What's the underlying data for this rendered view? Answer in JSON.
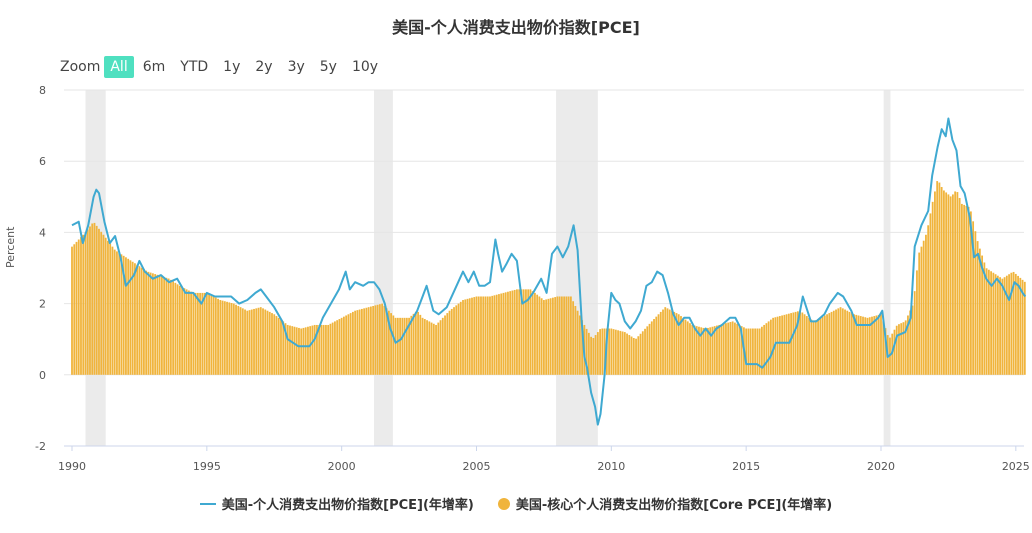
{
  "title": "美国-个人消费支出物价指数[PCE]",
  "zoom": {
    "label": "Zoom",
    "buttons": [
      "All",
      "6m",
      "YTD",
      "1y",
      "2y",
      "3y",
      "5y",
      "10y"
    ],
    "active": "All"
  },
  "colors": {
    "pce": "#3fa9d1",
    "core": "#f0b43c",
    "recession": "#ebebeb",
    "grid": "#e6e6e6",
    "active_button": "#4fe0c0"
  },
  "chart_data": {
    "type": "line+bar",
    "ylabel": "Percent",
    "ylim": [
      -2,
      8
    ],
    "yticks": [
      -2,
      0,
      2,
      4,
      6,
      8
    ],
    "xlim": [
      1990.0,
      2025.6
    ],
    "xticks": [
      1990,
      1995,
      2000,
      2005,
      2010,
      2015,
      2020,
      2025
    ],
    "recessions": [
      [
        1990.5,
        1991.25
      ],
      [
        2001.2,
        2001.9
      ],
      [
        2007.95,
        2009.5
      ],
      [
        2020.1,
        2020.35
      ]
    ],
    "series": [
      {
        "name": "美国-个人消费支出物价指数[PCE](年增率)",
        "kind": "line",
        "points": [
          [
            1990.0,
            4.2
          ],
          [
            1990.25,
            4.3
          ],
          [
            1990.4,
            3.7
          ],
          [
            1990.6,
            4.2
          ],
          [
            1990.8,
            5.0
          ],
          [
            1990.9,
            5.2
          ],
          [
            1991.0,
            5.1
          ],
          [
            1991.2,
            4.3
          ],
          [
            1991.4,
            3.7
          ],
          [
            1991.6,
            3.9
          ],
          [
            1991.8,
            3.3
          ],
          [
            1992.0,
            2.5
          ],
          [
            1992.3,
            2.8
          ],
          [
            1992.5,
            3.2
          ],
          [
            1992.7,
            2.9
          ],
          [
            1993.0,
            2.7
          ],
          [
            1993.3,
            2.8
          ],
          [
            1993.6,
            2.6
          ],
          [
            1993.9,
            2.7
          ],
          [
            1994.2,
            2.3
          ],
          [
            1994.5,
            2.3
          ],
          [
            1994.8,
            2.0
          ],
          [
            1995.0,
            2.3
          ],
          [
            1995.3,
            2.2
          ],
          [
            1995.6,
            2.2
          ],
          [
            1995.9,
            2.2
          ],
          [
            1996.2,
            2.0
          ],
          [
            1996.5,
            2.1
          ],
          [
            1996.8,
            2.3
          ],
          [
            1997.0,
            2.4
          ],
          [
            1997.2,
            2.2
          ],
          [
            1997.5,
            1.9
          ],
          [
            1997.8,
            1.5
          ],
          [
            1998.0,
            1.0
          ],
          [
            1998.2,
            0.9
          ],
          [
            1998.4,
            0.8
          ],
          [
            1998.6,
            0.8
          ],
          [
            1998.8,
            0.8
          ],
          [
            1999.0,
            1.0
          ],
          [
            1999.3,
            1.6
          ],
          [
            1999.6,
            2.0
          ],
          [
            1999.9,
            2.4
          ],
          [
            2000.15,
            2.9
          ],
          [
            2000.3,
            2.4
          ],
          [
            2000.5,
            2.6
          ],
          [
            2000.8,
            2.5
          ],
          [
            2001.0,
            2.6
          ],
          [
            2001.2,
            2.6
          ],
          [
            2001.4,
            2.4
          ],
          [
            2001.6,
            2.0
          ],
          [
            2001.8,
            1.3
          ],
          [
            2002.0,
            0.9
          ],
          [
            2002.2,
            1.0
          ],
          [
            2002.5,
            1.4
          ],
          [
            2002.8,
            1.8
          ],
          [
            2003.0,
            2.2
          ],
          [
            2003.15,
            2.5
          ],
          [
            2003.4,
            1.8
          ],
          [
            2003.6,
            1.7
          ],
          [
            2003.9,
            1.9
          ],
          [
            2004.2,
            2.4
          ],
          [
            2004.5,
            2.9
          ],
          [
            2004.7,
            2.6
          ],
          [
            2004.9,
            2.9
          ],
          [
            2005.1,
            2.5
          ],
          [
            2005.3,
            2.5
          ],
          [
            2005.5,
            2.6
          ],
          [
            2005.7,
            3.8
          ],
          [
            2005.8,
            3.4
          ],
          [
            2005.95,
            2.9
          ],
          [
            2006.1,
            3.1
          ],
          [
            2006.3,
            3.4
          ],
          [
            2006.5,
            3.2
          ],
          [
            2006.7,
            2.0
          ],
          [
            2006.9,
            2.1
          ],
          [
            2007.1,
            2.3
          ],
          [
            2007.4,
            2.7
          ],
          [
            2007.6,
            2.3
          ],
          [
            2007.8,
            3.4
          ],
          [
            2008.0,
            3.6
          ],
          [
            2008.2,
            3.3
          ],
          [
            2008.4,
            3.6
          ],
          [
            2008.6,
            4.2
          ],
          [
            2008.75,
            3.5
          ],
          [
            2008.9,
            1.5
          ],
          [
            2009.0,
            0.5
          ],
          [
            2009.1,
            0.2
          ],
          [
            2009.25,
            -0.5
          ],
          [
            2009.4,
            -0.9
          ],
          [
            2009.5,
            -1.4
          ],
          [
            2009.6,
            -1.1
          ],
          [
            2009.75,
            0.0
          ],
          [
            2009.85,
            1.2
          ],
          [
            2010.0,
            2.3
          ],
          [
            2010.15,
            2.1
          ],
          [
            2010.3,
            2.0
          ],
          [
            2010.5,
            1.5
          ],
          [
            2010.7,
            1.3
          ],
          [
            2010.9,
            1.5
          ],
          [
            2011.1,
            1.8
          ],
          [
            2011.3,
            2.5
          ],
          [
            2011.5,
            2.6
          ],
          [
            2011.7,
            2.9
          ],
          [
            2011.9,
            2.8
          ],
          [
            2012.1,
            2.3
          ],
          [
            2012.3,
            1.7
          ],
          [
            2012.5,
            1.4
          ],
          [
            2012.7,
            1.6
          ],
          [
            2012.9,
            1.6
          ],
          [
            2013.1,
            1.3
          ],
          [
            2013.3,
            1.1
          ],
          [
            2013.5,
            1.3
          ],
          [
            2013.7,
            1.1
          ],
          [
            2013.9,
            1.3
          ],
          [
            2014.1,
            1.4
          ],
          [
            2014.4,
            1.6
          ],
          [
            2014.6,
            1.6
          ],
          [
            2014.8,
            1.3
          ],
          [
            2015.0,
            0.3
          ],
          [
            2015.2,
            0.3
          ],
          [
            2015.4,
            0.3
          ],
          [
            2015.6,
            0.2
          ],
          [
            2015.9,
            0.5
          ],
          [
            2016.1,
            0.9
          ],
          [
            2016.4,
            0.9
          ],
          [
            2016.6,
            0.9
          ],
          [
            2016.9,
            1.4
          ],
          [
            2017.1,
            2.2
          ],
          [
            2017.4,
            1.5
          ],
          [
            2017.6,
            1.5
          ],
          [
            2017.9,
            1.7
          ],
          [
            2018.1,
            2.0
          ],
          [
            2018.4,
            2.3
          ],
          [
            2018.6,
            2.2
          ],
          [
            2018.9,
            1.8
          ],
          [
            2019.1,
            1.4
          ],
          [
            2019.4,
            1.4
          ],
          [
            2019.6,
            1.4
          ],
          [
            2019.9,
            1.6
          ],
          [
            2020.05,
            1.8
          ],
          [
            2020.25,
            0.5
          ],
          [
            2020.4,
            0.6
          ],
          [
            2020.6,
            1.1
          ],
          [
            2020.9,
            1.2
          ],
          [
            2021.1,
            1.6
          ],
          [
            2021.25,
            3.6
          ],
          [
            2021.5,
            4.2
          ],
          [
            2021.75,
            4.6
          ],
          [
            2021.9,
            5.6
          ],
          [
            2022.1,
            6.4
          ],
          [
            2022.25,
            6.9
          ],
          [
            2022.4,
            6.7
          ],
          [
            2022.5,
            7.2
          ],
          [
            2022.65,
            6.6
          ],
          [
            2022.8,
            6.3
          ],
          [
            2022.95,
            5.3
          ],
          [
            2023.1,
            5.1
          ],
          [
            2023.3,
            4.4
          ],
          [
            2023.45,
            3.3
          ],
          [
            2023.6,
            3.4
          ],
          [
            2023.75,
            3.0
          ],
          [
            2023.9,
            2.7
          ],
          [
            2024.1,
            2.5
          ],
          [
            2024.3,
            2.7
          ],
          [
            2024.5,
            2.5
          ],
          [
            2024.75,
            2.1
          ],
          [
            2024.95,
            2.6
          ],
          [
            2025.1,
            2.5
          ],
          [
            2025.25,
            2.3
          ],
          [
            2025.35,
            2.2
          ]
        ]
      },
      {
        "name": "美国-核心个人消费支出物价指数[Core PCE](年增率)",
        "kind": "bar",
        "points": [
          [
            1990.0,
            3.6
          ],
          [
            1990.5,
            4.0
          ],
          [
            1990.8,
            4.3
          ],
          [
            1991.0,
            4.1
          ],
          [
            1991.3,
            3.8
          ],
          [
            1991.6,
            3.5
          ],
          [
            1992.0,
            3.3
          ],
          [
            1992.4,
            3.1
          ],
          [
            1992.8,
            2.9
          ],
          [
            1993.2,
            2.8
          ],
          [
            1993.6,
            2.7
          ],
          [
            1994.0,
            2.5
          ],
          [
            1994.5,
            2.3
          ],
          [
            1995.0,
            2.3
          ],
          [
            1995.5,
            2.1
          ],
          [
            1996.0,
            2.0
          ],
          [
            1996.5,
            1.8
          ],
          [
            1997.0,
            1.9
          ],
          [
            1997.5,
            1.7
          ],
          [
            1998.0,
            1.4
          ],
          [
            1998.5,
            1.3
          ],
          [
            1999.0,
            1.4
          ],
          [
            1999.5,
            1.4
          ],
          [
            2000.0,
            1.6
          ],
          [
            2000.5,
            1.8
          ],
          [
            2001.0,
            1.9
          ],
          [
            2001.5,
            2.0
          ],
          [
            2002.0,
            1.6
          ],
          [
            2002.5,
            1.6
          ],
          [
            2002.8,
            1.8
          ],
          [
            2003.0,
            1.6
          ],
          [
            2003.5,
            1.4
          ],
          [
            2004.0,
            1.8
          ],
          [
            2004.5,
            2.1
          ],
          [
            2005.0,
            2.2
          ],
          [
            2005.5,
            2.2
          ],
          [
            2006.0,
            2.3
          ],
          [
            2006.5,
            2.4
          ],
          [
            2007.0,
            2.4
          ],
          [
            2007.5,
            2.1
          ],
          [
            2008.0,
            2.2
          ],
          [
            2008.5,
            2.2
          ],
          [
            2009.0,
            1.4
          ],
          [
            2009.3,
            1.0
          ],
          [
            2009.6,
            1.3
          ],
          [
            2010.0,
            1.3
          ],
          [
            2010.5,
            1.2
          ],
          [
            2010.9,
            1.0
          ],
          [
            2011.5,
            1.5
          ],
          [
            2012.0,
            1.9
          ],
          [
            2012.5,
            1.7
          ],
          [
            2013.0,
            1.4
          ],
          [
            2013.5,
            1.3
          ],
          [
            2014.0,
            1.4
          ],
          [
            2014.5,
            1.5
          ],
          [
            2015.0,
            1.3
          ],
          [
            2015.5,
            1.3
          ],
          [
            2016.0,
            1.6
          ],
          [
            2016.5,
            1.7
          ],
          [
            2017.0,
            1.8
          ],
          [
            2017.5,
            1.5
          ],
          [
            2018.0,
            1.7
          ],
          [
            2018.5,
            1.9
          ],
          [
            2019.0,
            1.7
          ],
          [
            2019.5,
            1.6
          ],
          [
            2020.0,
            1.7
          ],
          [
            2020.3,
            1.0
          ],
          [
            2020.6,
            1.4
          ],
          [
            2020.9,
            1.5
          ],
          [
            2021.2,
            2.0
          ],
          [
            2021.4,
            3.4
          ],
          [
            2021.7,
            4.0
          ],
          [
            2021.9,
            4.8
          ],
          [
            2022.1,
            5.5
          ],
          [
            2022.3,
            5.2
          ],
          [
            2022.6,
            5.0
          ],
          [
            2022.8,
            5.2
          ],
          [
            2023.0,
            4.8
          ],
          [
            2023.3,
            4.7
          ],
          [
            2023.6,
            3.7
          ],
          [
            2023.9,
            3.0
          ],
          [
            2024.1,
            2.9
          ],
          [
            2024.5,
            2.7
          ],
          [
            2024.9,
            2.9
          ],
          [
            2025.2,
            2.7
          ],
          [
            2025.35,
            2.6
          ]
        ]
      }
    ]
  }
}
